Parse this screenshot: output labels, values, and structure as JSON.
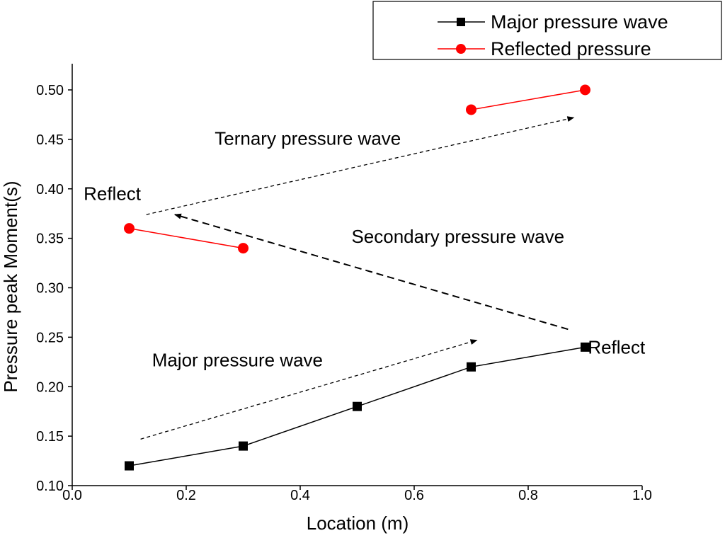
{
  "chart_data": {
    "type": "line",
    "title": "",
    "xlabel": "Location (m)",
    "ylabel": "Pressure peak Moment(s)",
    "xlim": [
      0.0,
      1.0
    ],
    "ylim": [
      0.1,
      0.52
    ],
    "x_ticks": [
      0.0,
      0.2,
      0.4,
      0.6,
      0.8,
      1.0
    ],
    "x_tick_labels": [
      "0.0",
      "0.2",
      "0.4",
      "0.6",
      "0.8",
      "1.0"
    ],
    "y_ticks": [
      0.1,
      0.15,
      0.2,
      0.25,
      0.3,
      0.35,
      0.4,
      0.45,
      0.5
    ],
    "y_tick_labels": [
      "0.10",
      "0.15",
      "0.20",
      "0.25",
      "0.30",
      "0.35",
      "0.40",
      "0.45",
      "0.50"
    ],
    "grid": false,
    "legend_position": "top-right outside",
    "series": [
      {
        "name": "Major pressure wave",
        "color": "#000000",
        "marker": "square",
        "segments": [
          [
            [
              0.1,
              0.12
            ],
            [
              0.3,
              0.14
            ],
            [
              0.5,
              0.18
            ],
            [
              0.7,
              0.22
            ],
            [
              0.9,
              0.24
            ]
          ]
        ]
      },
      {
        "name": "Reflected pressure",
        "color": "#ff0000",
        "marker": "circle",
        "segments": [
          [
            [
              0.1,
              0.36
            ],
            [
              0.3,
              0.34
            ]
          ],
          [
            [
              0.7,
              0.48
            ],
            [
              0.9,
              0.5
            ]
          ]
        ]
      }
    ],
    "annotations": [
      {
        "name": "annotation-major-pressure-wave",
        "text": "Major pressure wave",
        "x": 0.14,
        "y": 0.227
      },
      {
        "name": "annotation-secondary-pressure-wave",
        "text": "Secondary pressure wave",
        "x": 0.49,
        "y": 0.352
      },
      {
        "name": "annotation-ternary-pressure-wave",
        "text": "Ternary pressure wave",
        "x": 0.25,
        "y": 0.451
      },
      {
        "name": "annotation-reflect-left",
        "text": "Reflect",
        "x": 0.02,
        "y": 0.395
      },
      {
        "name": "annotation-reflect-right",
        "text": "Reflect",
        "x": 0.955,
        "y": 0.24
      }
    ],
    "arrows": [
      {
        "name": "arrow-major",
        "from": [
          0.12,
          0.147
        ],
        "to": [
          0.71,
          0.247
        ],
        "dash": "short"
      },
      {
        "name": "arrow-secondary",
        "from": [
          0.87,
          0.258
        ],
        "to": [
          0.18,
          0.374
        ],
        "dash": "long"
      },
      {
        "name": "arrow-ternary",
        "from": [
          0.13,
          0.374
        ],
        "to": [
          0.88,
          0.472
        ],
        "dash": "short"
      }
    ]
  }
}
